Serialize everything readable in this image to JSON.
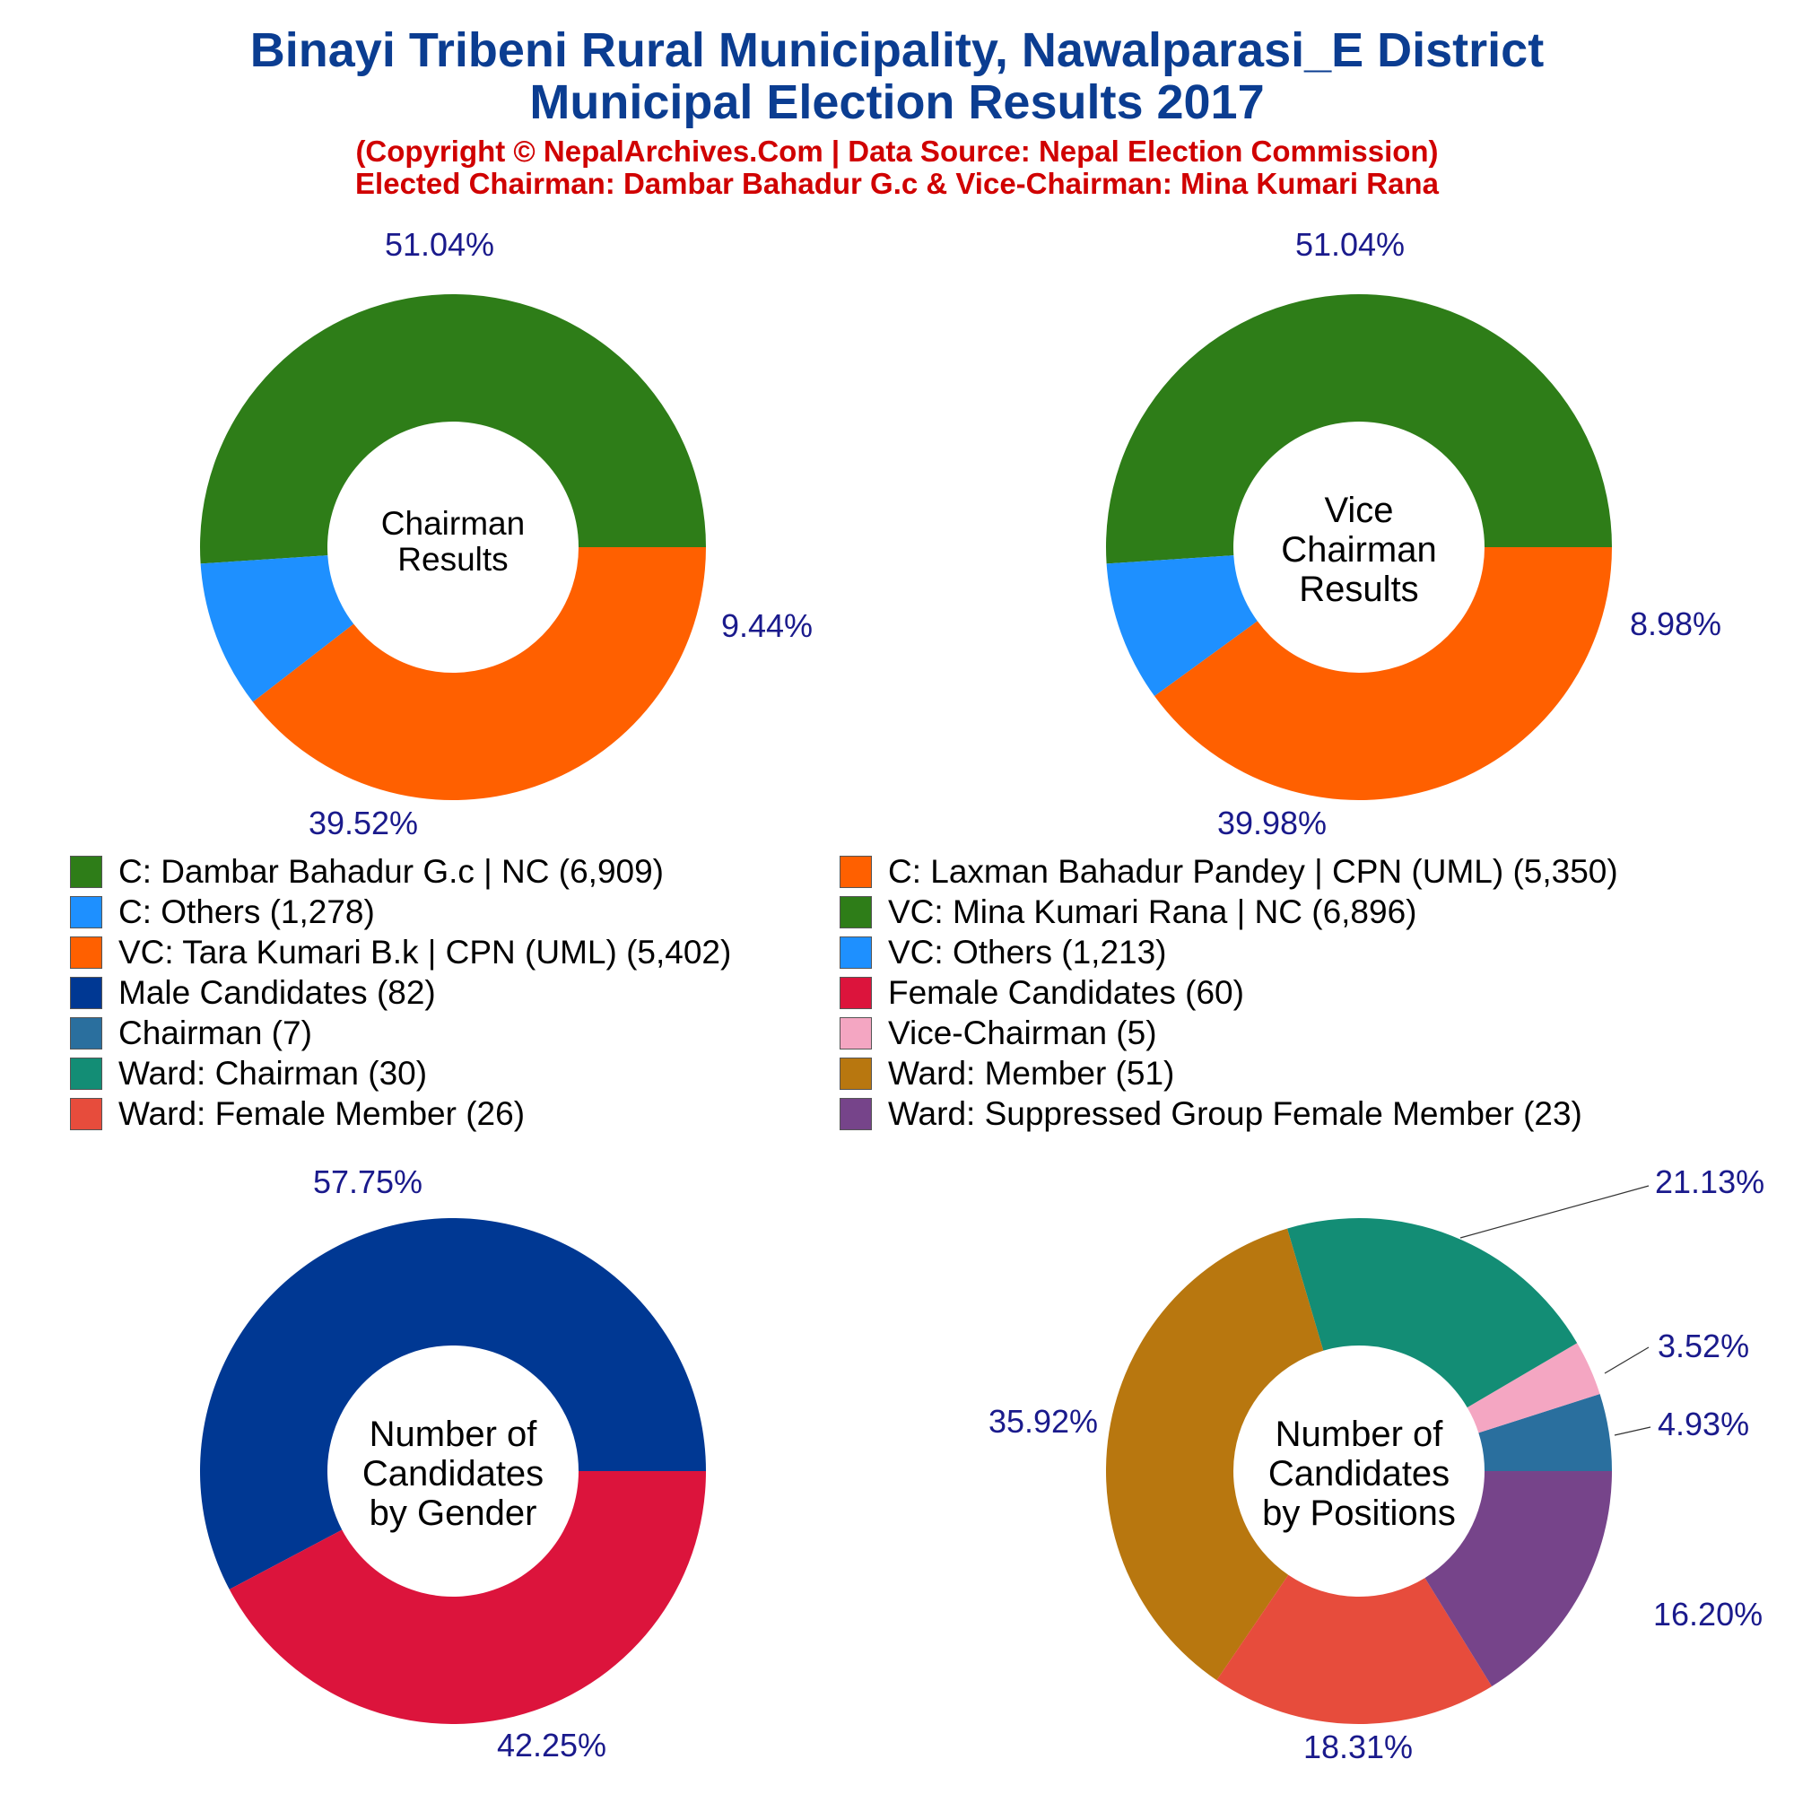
{
  "header": {
    "title_line1": "Binayi Tribeni Rural Municipality, Nawalparasi_E District",
    "title_line2": "Municipal Election Results 2017",
    "subtitle_line1": "(Copyright © NepalArchives.Com | Data Source: Nepal Election Commission)",
    "subtitle_line2": "Elected Chairman: Dambar Bahadur G.c & Vice-Chairman: Mina Kumari Rana"
  },
  "legend": [
    {
      "label": "C: Dambar Bahadur G.c | NC (6,909)",
      "color": "#2e7d18"
    },
    {
      "label": "C: Laxman Bahadur Pandey | CPN (UML) (5,350)",
      "color": "#ff6000"
    },
    {
      "label": "C: Others (1,278)",
      "color": "#1e90ff"
    },
    {
      "label": "VC: Mina Kumari Rana | NC (6,896)",
      "color": "#2e7d18"
    },
    {
      "label": "VC: Tara Kumari B.k | CPN (UML) (5,402)",
      "color": "#ff6000"
    },
    {
      "label": "VC: Others (1,213)",
      "color": "#1e90ff"
    },
    {
      "label": "Male Candidates (82)",
      "color": "#003893"
    },
    {
      "label": "Female Candidates (60)",
      "color": "#dc143c"
    },
    {
      "label": "Chairman (7)",
      "color": "#2a6f9e"
    },
    {
      "label": "Vice-Chairman (5)",
      "color": "#f4a6c2"
    },
    {
      "label": "Ward: Chairman (30)",
      "color": "#138d75"
    },
    {
      "label": "Ward: Member (51)",
      "color": "#b8770f"
    },
    {
      "label": "Ward: Female Member (26)",
      "color": "#e74c3c"
    },
    {
      "label": "Ward: Suppressed Group Female Member (23)",
      "color": "#76448a"
    }
  ],
  "chart_data": [
    {
      "type": "pie",
      "center_label": [
        "Chairman",
        "Results"
      ],
      "slices": [
        {
          "name": "C: Dambar Bahadur G.c | NC",
          "value": 6909,
          "percent_label": "51.04%",
          "color": "#2e7d18"
        },
        {
          "name": "C: Others",
          "value": 1278,
          "percent_label": "9.44%",
          "color": "#1e90ff"
        },
        {
          "name": "C: Laxman Bahadur Pandey | CPN (UML)",
          "value": 5350,
          "percent_label": "39.52%",
          "color": "#ff6000"
        }
      ]
    },
    {
      "type": "pie",
      "center_label": [
        "Vice",
        "Chairman",
        "Results"
      ],
      "slices": [
        {
          "name": "VC: Mina Kumari Rana | NC",
          "value": 6896,
          "percent_label": "51.04%",
          "color": "#2e7d18"
        },
        {
          "name": "VC: Others",
          "value": 1213,
          "percent_label": "8.98%",
          "color": "#1e90ff"
        },
        {
          "name": "VC: Tara Kumari B.k | CPN (UML)",
          "value": 5402,
          "percent_label": "39.98%",
          "color": "#ff6000"
        }
      ]
    },
    {
      "type": "pie",
      "center_label": [
        "Number of",
        "Candidates",
        "by Gender"
      ],
      "slices": [
        {
          "name": "Male Candidates",
          "value": 82,
          "percent_label": "57.75%",
          "color": "#003893"
        },
        {
          "name": "Female Candidates",
          "value": 60,
          "percent_label": "42.25%",
          "color": "#dc143c"
        }
      ]
    },
    {
      "type": "pie",
      "center_label": [
        "Number of",
        "Candidates",
        "by Positions"
      ],
      "slices": [
        {
          "name": "Chairman",
          "value": 7,
          "percent_label": "4.93%",
          "color": "#2a6f9e"
        },
        {
          "name": "Vice-Chairman",
          "value": 5,
          "percent_label": "3.52%",
          "color": "#f4a6c2"
        },
        {
          "name": "Ward: Chairman",
          "value": 30,
          "percent_label": "21.13%",
          "color": "#138d75"
        },
        {
          "name": "Ward: Member",
          "value": 51,
          "percent_label": "35.92%",
          "color": "#b8770f"
        },
        {
          "name": "Ward: Female Member",
          "value": 26,
          "percent_label": "18.31%",
          "color": "#e74c3c"
        },
        {
          "name": "Ward: Suppressed Group Female Member",
          "value": 23,
          "percent_label": "16.20%",
          "color": "#76448a"
        }
      ]
    }
  ]
}
